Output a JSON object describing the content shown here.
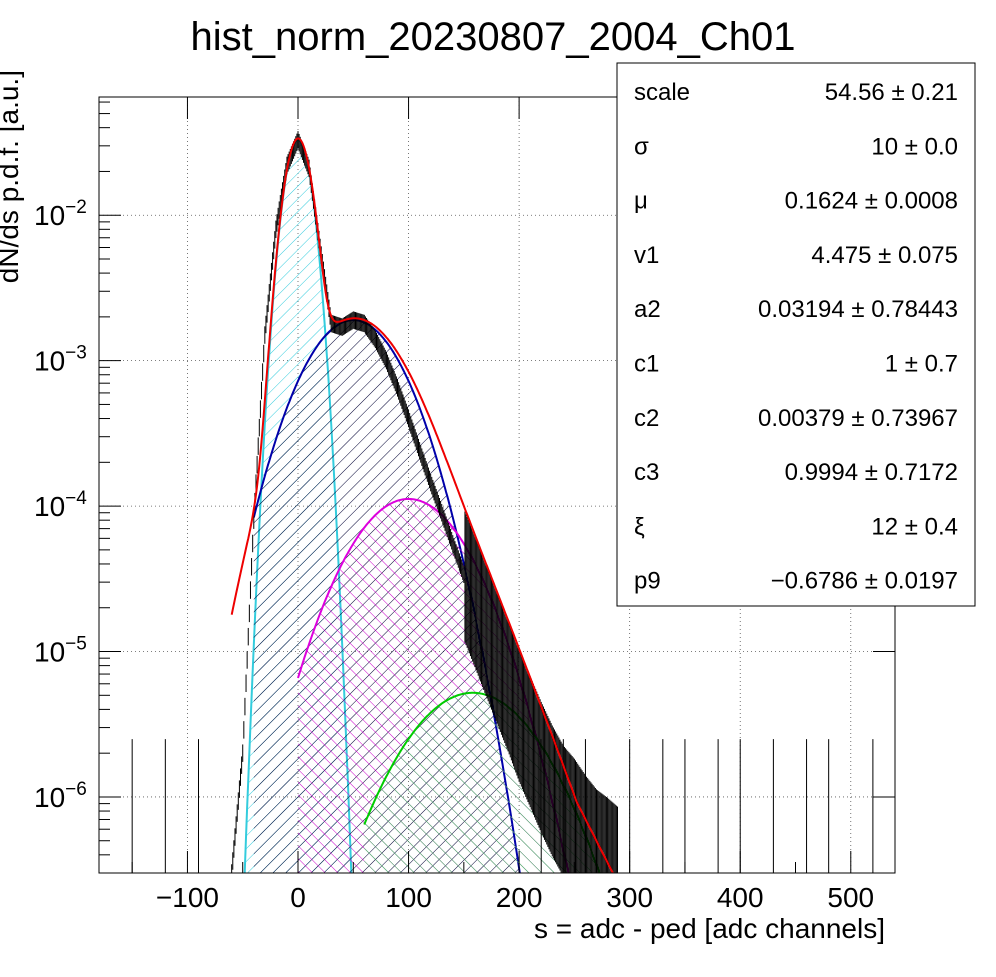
{
  "chart_data": {
    "type": "histogram",
    "title": "hist_norm_20230807_2004_Ch01",
    "xlabel": "s = adc - ped [adc channels]",
    "ylabel": "dN/ds p.d.f. [a.u.]",
    "xlim": [
      -180,
      540
    ],
    "ylim": [
      3e-07,
      0.065
    ],
    "yscale": "log",
    "grid": true,
    "x_ticks": [
      -100,
      0,
      100,
      200,
      300,
      400,
      500
    ],
    "x_tick_labels": [
      "−100",
      "0",
      "100",
      "200",
      "300",
      "400",
      "500"
    ],
    "y_ticks": [
      {
        "value": 1e-06,
        "base": "10",
        "exp": "−6"
      },
      {
        "value": 1e-05,
        "base": "10",
        "exp": "−5"
      },
      {
        "value": 0.0001,
        "base": "10",
        "exp": "−4"
      },
      {
        "value": 0.001,
        "base": "10",
        "exp": "−3"
      },
      {
        "value": 0.01,
        "base": "10",
        "exp": "−2"
      }
    ],
    "data_series": {
      "x": [
        -60,
        -50,
        -40,
        -30,
        -20,
        -10,
        0,
        10,
        20,
        30,
        40,
        50,
        60,
        70,
        80,
        90,
        100,
        110,
        120,
        130,
        140,
        150,
        160,
        170,
        180,
        190,
        200,
        210,
        220,
        230,
        240,
        250,
        260,
        270,
        280,
        290
      ],
      "y": [
        3e-07,
        2e-06,
        8e-05,
        0.0015,
        0.008,
        0.022,
        0.033,
        0.021,
        0.006,
        0.0018,
        0.0017,
        0.0019,
        0.0018,
        0.0014,
        0.001,
        0.00065,
        0.0004,
        0.00024,
        0.000145,
        9e-05,
        5.5e-05,
        3.4e-05,
        2.2e-05,
        1.4e-05,
        9e-06,
        5.8e-06,
        3.6e-06,
        2.4e-06,
        1.6e-06,
        1.1e-06,
        8e-07,
        6.5e-07,
        5e-07,
        4e-07,
        3.5e-07,
        3e-07
      ]
    },
    "components": [
      {
        "color": "#33ccdd",
        "amp": 0.033,
        "mu": 0,
        "sigma": 10,
        "xmin": -60,
        "xmax": 50
      },
      {
        "color": "#0000aa",
        "amp": 0.0019,
        "mu": 50,
        "sigma": 36,
        "xmin": -40,
        "xmax": 210
      },
      {
        "color": "#dd00dd",
        "amp": 0.000112,
        "mu": 100,
        "sigma": 42,
        "xmin": 0,
        "xmax": 260
      },
      {
        "color": "#00cc00",
        "amp": 5.2e-06,
        "mu": 158,
        "sigma": 48,
        "xmin": 60,
        "xmax": 290
      }
    ],
    "total_fit_color": "#ee0000",
    "stats_box": [
      {
        "label": "scale",
        "value": "54.56 ± 0.21"
      },
      {
        "label": "σ",
        "value": "10 ± 0.0"
      },
      {
        "label": "μ",
        "value": "0.1624 ± 0.0008"
      },
      {
        "label": "v1",
        "value": "4.475 ± 0.075"
      },
      {
        "label": "a2",
        "value": "0.03194 ± 0.78443"
      },
      {
        "label": "c1",
        "value": "1 ± 0.7"
      },
      {
        "label": "c2",
        "value": "0.00379 ± 0.73967"
      },
      {
        "label": "c3",
        "value": "0.9994 ± 0.7172"
      },
      {
        "label": "ξ",
        "value": "12 ± 0.4"
      },
      {
        "label": "p9",
        "value": "−0.6786 ± 0.0197"
      }
    ]
  }
}
